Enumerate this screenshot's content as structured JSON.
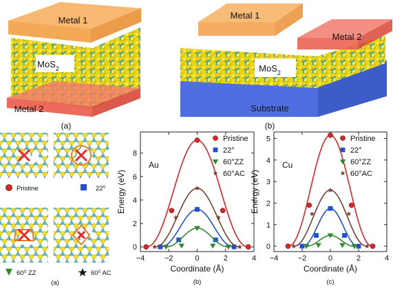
{
  "top": {
    "left": {
      "metal_top": "Metal 1",
      "center": "MoS",
      "center_sub": "2",
      "metal_bottom": "Metal 2",
      "caption": "(a)"
    },
    "right": {
      "metal_1": "Metal 1",
      "metal_2": "Metal 2",
      "center": "MoS",
      "center_sub": "2",
      "substrate": "Substrate",
      "caption": "(b)"
    }
  },
  "defects": {
    "caption": "(a)",
    "labels": {
      "pristine": "Pristine",
      "d22": "22",
      "d60zz": "60",
      "d60zz_suffix": " ZZ",
      "d60ac": "60",
      "d60ac_suffix": " AC",
      "deg": "0"
    }
  },
  "colors": {
    "metal1": "#f5a64c",
    "metal2": "#ee5a45",
    "substrate": "#4f6fe0",
    "sulfur": "#f4e01c",
    "molybdenum": "#5fb8b0",
    "pristine": "#d62728",
    "d22": "#1f4fd8",
    "d60zz": "#2e8b2e",
    "d60ac": "#7a3d2e"
  },
  "chart_data": [
    {
      "type": "line",
      "panel": "(b)",
      "metal": "Au",
      "xlabel": "Coordinate (Å)",
      "ylabel": "Energy (eV)",
      "xlim": [
        -4,
        4
      ],
      "ylim": [
        -0.4,
        9.8
      ],
      "xticks": [
        -4,
        -2,
        0,
        2,
        4
      ],
      "yticks": [
        0,
        2,
        4,
        6,
        8
      ],
      "legend": "top-right",
      "series": [
        {
          "name": "Pristine",
          "marker": "circle",
          "x": [
            -3.6,
            -1.8,
            0,
            1.8,
            3.6
          ],
          "y": [
            0.0,
            3.1,
            9.1,
            3.1,
            0.0
          ]
        },
        {
          "name": "22°",
          "marker": "square",
          "x": [
            -2.6,
            -1.3,
            0,
            1.3,
            2.6
          ],
          "y": [
            0.0,
            0.6,
            3.2,
            0.6,
            0.0
          ]
        },
        {
          "name": "60°ZZ",
          "marker": "triangle-down",
          "x": [
            -2.2,
            -1.1,
            0,
            1.1,
            2.2
          ],
          "y": [
            0.0,
            0.1,
            1.6,
            0.1,
            0.0
          ]
        },
        {
          "name": "60°AC",
          "marker": "star",
          "x": [
            -3.0,
            -1.5,
            0,
            1.5,
            3.0
          ],
          "y": [
            0.0,
            2.5,
            5.0,
            2.5,
            0.0
          ]
        }
      ]
    },
    {
      "type": "line",
      "panel": "(c)",
      "metal": "Cu",
      "xlabel": "Coordinate (Å)",
      "ylabel": "Energy (eV)",
      "xlim": [
        -4,
        4
      ],
      "ylim": [
        -0.25,
        5.3
      ],
      "xticks": [
        -4,
        -2,
        0,
        2,
        4
      ],
      "yticks": [
        0,
        1,
        2,
        3,
        4,
        5
      ],
      "legend": "top-right",
      "series": [
        {
          "name": "Pristine",
          "marker": "circle",
          "x": [
            -3.0,
            -1.5,
            0,
            1.5,
            3.0
          ],
          "y": [
            0.0,
            1.9,
            5.15,
            1.9,
            0.0
          ]
        },
        {
          "name": "22°",
          "marker": "square",
          "x": [
            -2.0,
            -1.0,
            0,
            1.0,
            2.0
          ],
          "y": [
            0.0,
            0.5,
            1.75,
            0.5,
            0.0
          ]
        },
        {
          "name": "60°ZZ",
          "marker": "triangle-down",
          "x": [
            -1.7,
            -0.85,
            0,
            0.85,
            1.7
          ],
          "y": [
            0.0,
            0.05,
            0.5,
            0.05,
            0.0
          ]
        },
        {
          "name": "60°AC",
          "marker": "star",
          "x": [
            -2.6,
            -1.3,
            0,
            1.3,
            2.6
          ],
          "y": [
            0.0,
            1.5,
            2.6,
            1.5,
            0.0
          ]
        }
      ]
    }
  ]
}
